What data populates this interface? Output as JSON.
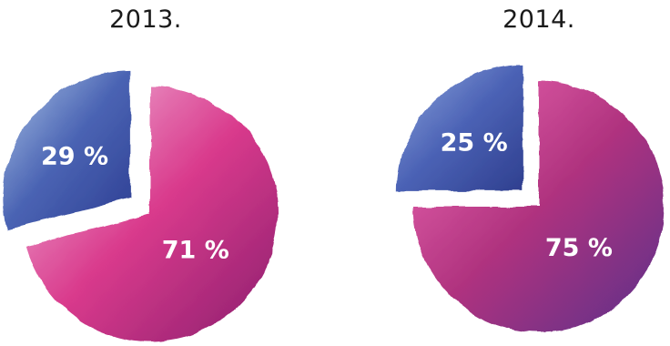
{
  "chart_data": [
    {
      "type": "pie",
      "title": "2013.",
      "slices": [
        {
          "label": "29 %",
          "value": 29,
          "exploded": true,
          "colors": [
            "#a9c3e6",
            "#4a63b3",
            "#2e3f93"
          ]
        },
        {
          "label": "71 %",
          "value": 71,
          "exploded": false,
          "colors": [
            "#f2bfe0",
            "#d93a8c",
            "#8a1f6e"
          ]
        }
      ]
    },
    {
      "type": "pie",
      "title": "2014.",
      "slices": [
        {
          "label": "25 %",
          "value": 25,
          "exploded": true,
          "colors": [
            "#8fa6dd",
            "#4b62b5",
            "#2f3f8f"
          ]
        },
        {
          "label": "75 %",
          "value": 75,
          "exploded": false,
          "colors": [
            "#f06bb5",
            "#b0337f",
            "#5a2e8a"
          ]
        }
      ]
    }
  ]
}
